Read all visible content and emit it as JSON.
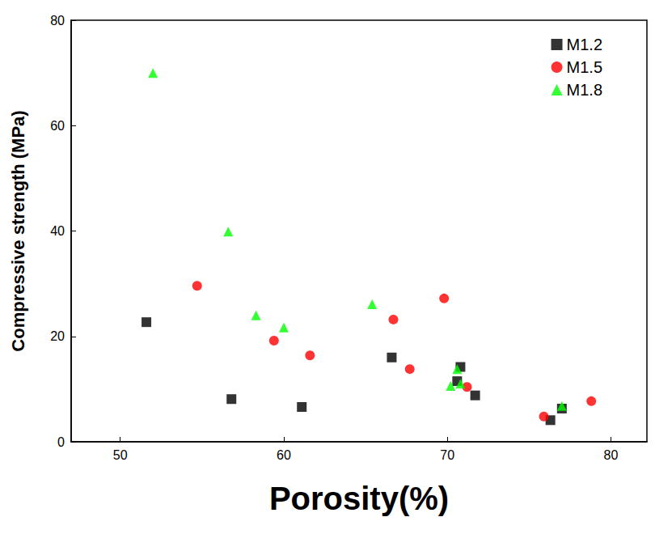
{
  "chart_data": {
    "type": "scatter",
    "x_label": "Porosity(%)",
    "y_label": "Compressive strength (MPa)",
    "xlim": [
      47,
      82.2
    ],
    "xticks": [
      50,
      60,
      70,
      80
    ],
    "ylim": [
      0,
      80
    ],
    "yticks": [
      0,
      20,
      40,
      60,
      80
    ],
    "grid": false,
    "legend": "upper right",
    "series": [
      {
        "name": "M1.2",
        "color": "#000000",
        "marker": "square",
        "x": [
          51.6,
          56.8,
          61.1,
          66.6,
          70.6,
          70.8,
          71.7,
          76.3,
          77.0
        ],
        "values": [
          22.7,
          8.1,
          6.6,
          16.0,
          11.5,
          14.2,
          8.8,
          4.1,
          6.3
        ]
      },
      {
        "name": "M1.5",
        "color": "#ff0000",
        "marker": "circle",
        "x": [
          54.7,
          59.4,
          61.6,
          66.7,
          67.7,
          69.8,
          71.2,
          75.9,
          78.8
        ],
        "values": [
          29.6,
          19.2,
          16.4,
          23.2,
          13.8,
          27.2,
          10.4,
          4.8,
          7.7
        ]
      },
      {
        "name": "M1.8",
        "color": "#00ff00",
        "marker": "triangle",
        "x": [
          52.0,
          56.6,
          58.3,
          60.0,
          65.4,
          70.2,
          70.6,
          70.8,
          77.0
        ],
        "values": [
          70.0,
          39.9,
          24.0,
          21.7,
          26.1,
          10.6,
          13.8,
          11.0,
          6.8
        ]
      }
    ]
  }
}
